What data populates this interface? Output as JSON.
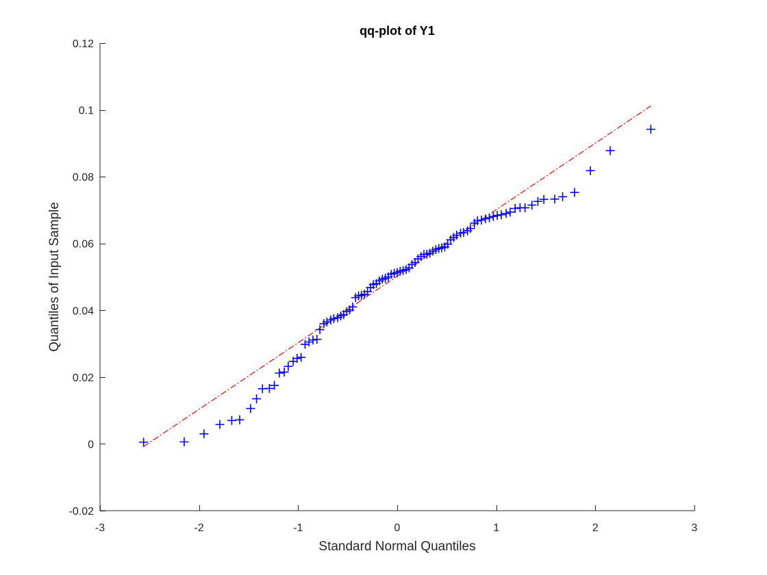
{
  "chart_data": {
    "type": "scatter",
    "title": "qq-plot of Y1",
    "xlabel": "Standard Normal Quantiles",
    "ylabel": "Quantiles of Input Sample",
    "xlim": [
      -3,
      3
    ],
    "ylim": [
      -0.02,
      0.12
    ],
    "xticks": [
      -3,
      -2,
      -1,
      0,
      1,
      2,
      3
    ],
    "xtick_labels": [
      "-3",
      "-2",
      "-1",
      "0",
      "1",
      "2",
      "3"
    ],
    "yticks": [
      -0.02,
      0,
      0.02,
      0.04,
      0.06,
      0.08,
      0.1,
      0.12
    ],
    "ytick_labels": [
      "-0.02",
      "0",
      "0.02",
      "0.04",
      "0.06",
      "0.08",
      "0.1",
      "0.12"
    ],
    "grid": false,
    "colors": {
      "points": "#0000ff",
      "reference_line": "#ff0000",
      "axes": "#262626"
    },
    "points": {
      "marker": "plus",
      "x": [
        -2.56,
        -2.15,
        -1.95,
        -1.79,
        -1.67,
        -1.59,
        -1.48,
        -1.42,
        -1.36,
        -1.29,
        -1.24,
        -1.19,
        -1.14,
        -1.1,
        -1.05,
        -1.01,
        -0.97,
        -0.93,
        -0.89,
        -0.85,
        -0.81,
        -0.78,
        -0.74,
        -0.71,
        -0.67,
        -0.64,
        -0.6,
        -0.57,
        -0.54,
        -0.51,
        -0.48,
        -0.45,
        -0.42,
        -0.39,
        -0.36,
        -0.33,
        -0.3,
        -0.27,
        -0.24,
        -0.21,
        -0.18,
        -0.15,
        -0.12,
        -0.09,
        -0.06,
        -0.03,
        0.0,
        0.03,
        0.06,
        0.09,
        0.12,
        0.15,
        0.18,
        0.21,
        0.24,
        0.27,
        0.3,
        0.33,
        0.36,
        0.39,
        0.42,
        0.45,
        0.48,
        0.51,
        0.54,
        0.57,
        0.6,
        0.64,
        0.67,
        0.71,
        0.74,
        0.78,
        0.81,
        0.85,
        0.89,
        0.93,
        0.97,
        1.01,
        1.05,
        1.1,
        1.14,
        1.19,
        1.24,
        1.29,
        1.36,
        1.42,
        1.48,
        1.59,
        1.67,
        1.79,
        1.95,
        2.15,
        2.56
      ],
      "y": [
        0.0005,
        0.0006,
        0.003,
        0.0058,
        0.007,
        0.0072,
        0.0106,
        0.0135,
        0.0165,
        0.0166,
        0.0175,
        0.0212,
        0.0215,
        0.0232,
        0.0247,
        0.0256,
        0.0259,
        0.0298,
        0.0305,
        0.0311,
        0.0313,
        0.0342,
        0.036,
        0.0365,
        0.0371,
        0.0375,
        0.0378,
        0.0383,
        0.0387,
        0.0396,
        0.0401,
        0.041,
        0.0438,
        0.0443,
        0.0445,
        0.0448,
        0.0456,
        0.0468,
        0.0477,
        0.048,
        0.0488,
        0.0493,
        0.0496,
        0.05,
        0.0508,
        0.0511,
        0.0513,
        0.0517,
        0.0519,
        0.0522,
        0.0527,
        0.0537,
        0.0543,
        0.0554,
        0.0561,
        0.0567,
        0.0568,
        0.0571,
        0.0577,
        0.0582,
        0.0585,
        0.0587,
        0.059,
        0.0598,
        0.0611,
        0.0618,
        0.0625,
        0.0631,
        0.0633,
        0.0638,
        0.0645,
        0.0661,
        0.0668,
        0.067,
        0.0674,
        0.0677,
        0.0681,
        0.0684,
        0.0686,
        0.069,
        0.0694,
        0.0705,
        0.0707,
        0.0707,
        0.0715,
        0.0726,
        0.0732,
        0.0733,
        0.074,
        0.0753,
        0.0818,
        0.0878,
        0.0942
      ]
    },
    "reference_line": {
      "style": "dash-dot",
      "x": [
        -2.56,
        2.56
      ],
      "y": [
        -0.0008,
        0.1012
      ]
    }
  }
}
